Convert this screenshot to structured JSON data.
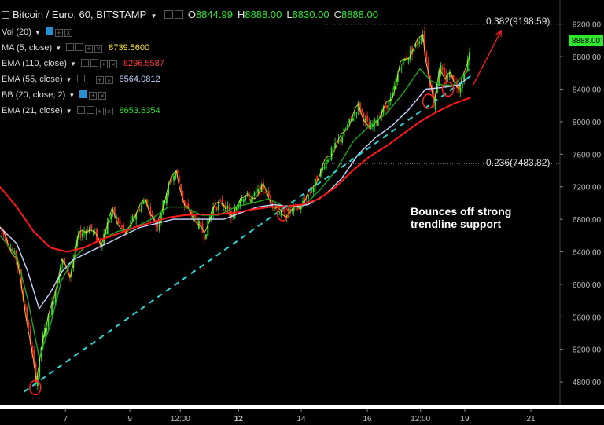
{
  "header": {
    "title": "Bitcoin / Euro, 60, BITSTAMP",
    "open_label": "O",
    "open": "8844.99",
    "high_label": "H",
    "high": "8888.00",
    "low_label": "L",
    "low": "8830.00",
    "close_label": "C",
    "close": "8888.00"
  },
  "indicators": [
    {
      "name": "Vol (20)",
      "value": "",
      "color": "#cccccc"
    },
    {
      "name": "MA (5, close)",
      "value": "8739.5600",
      "color": "#ffeb3b"
    },
    {
      "name": "EMA (110, close)",
      "value": "8296.5587",
      "color": "#ff3b3b"
    },
    {
      "name": "EMA (55, close)",
      "value": "8564.0812",
      "color": "#c8d6ff"
    },
    {
      "name": "BB (20, close, 2)",
      "value": "",
      "color": "#cccccc"
    },
    {
      "name": "EMA (21, close)",
      "value": "8653.6354",
      "color": "#2ee82e"
    }
  ],
  "annotation": {
    "line1": "Bounces off strong",
    "line2": "trendline support"
  },
  "fib_labels": {
    "upper": "0.382(9198.59)",
    "lower": "0.236(7483.82)"
  },
  "price_tag": "8888.00",
  "colors": {
    "up": "#2ee82e",
    "down": "#ff2a2a",
    "ma5": "#ffeb3b",
    "ema21": "#1fa51f",
    "ema55": "#c8d6ff",
    "ema110": "#ff1a1a",
    "trendline": "#2fd6d6",
    "circle": "#ff2020",
    "arrow": "#ff2020"
  },
  "chart_data": {
    "type": "line",
    "title": "Bitcoin / Euro, 60, BITSTAMP",
    "xlabel": "",
    "ylabel": "",
    "x_ticks": [
      "7",
      "9",
      "12:00",
      "12",
      "14",
      "16",
      "12:00",
      "19",
      "21"
    ],
    "y_ticks": [
      4800,
      5200,
      5600,
      6000,
      6400,
      6800,
      7200,
      7600,
      8000,
      8400,
      8800,
      9200
    ],
    "ylim": [
      4550,
      9400
    ],
    "x_domain": [
      0,
      100
    ],
    "x_tick_positions": [
      11.7,
      23.2,
      32.2,
      42.6,
      53.8,
      65.6,
      75.1,
      83.0,
      94.8
    ],
    "series": [
      {
        "name": "Price",
        "x": [
          0,
          3,
          5.2,
          6.5,
          7.5,
          9.5,
          11,
          12.5,
          14,
          16,
          18,
          20,
          22.5,
          24,
          26,
          28,
          30,
          31.5,
          33,
          35,
          36.5,
          38,
          40,
          41.5,
          43,
          45,
          47,
          49,
          50.5,
          52,
          53.6,
          56,
          58,
          60,
          62.5,
          64,
          66,
          68,
          70,
          71.5,
          74,
          75.5,
          76,
          77.5,
          78.5,
          79.5,
          80.5,
          82,
          83,
          84
        ],
        "y": [
          6700,
          6300,
          5400,
          4780,
          5300,
          5800,
          6300,
          6100,
          6600,
          6700,
          6500,
          6900,
          6600,
          6850,
          7050,
          6700,
          7200,
          7400,
          6950,
          6800,
          6600,
          6950,
          7000,
          6800,
          7100,
          7050,
          7200,
          6950,
          6850,
          6900,
          6950,
          7200,
          7500,
          7700,
          8000,
          8200,
          7900,
          8100,
          8300,
          8700,
          8900,
          9100,
          8800,
          8200,
          8700,
          8500,
          8600,
          8400,
          8600,
          8888
        ]
      },
      {
        "name": "EMA (21, close)",
        "x": [
          0,
          3,
          5,
          7,
          9,
          11,
          13,
          15,
          18,
          21,
          24,
          27,
          30,
          33,
          36,
          39,
          42,
          45,
          48,
          51,
          54,
          57,
          60,
          63,
          66,
          69,
          72,
          75,
          77,
          79,
          81,
          84
        ],
        "y": [
          6600,
          6350,
          5800,
          5100,
          5500,
          6050,
          6300,
          6450,
          6550,
          6650,
          6700,
          6800,
          6950,
          6950,
          6850,
          6850,
          6950,
          7000,
          7050,
          6950,
          6950,
          7150,
          7400,
          7750,
          7950,
          8100,
          8350,
          8650,
          8500,
          8450,
          8450,
          8653
        ]
      },
      {
        "name": "EMA (55, close)",
        "x": [
          0,
          3,
          5,
          7,
          9,
          11,
          13,
          16,
          19,
          22,
          25,
          28,
          31,
          34,
          37,
          40,
          43,
          46,
          49,
          52,
          55,
          58,
          61,
          64,
          67,
          70,
          73,
          76,
          79,
          82,
          84
        ],
        "y": [
          6700,
          6500,
          6150,
          5700,
          5900,
          6150,
          6300,
          6400,
          6500,
          6600,
          6700,
          6750,
          6800,
          6800,
          6800,
          6800,
          6880,
          6950,
          6980,
          6950,
          6980,
          7100,
          7300,
          7600,
          7800,
          7950,
          8150,
          8400,
          8420,
          8450,
          8564
        ]
      },
      {
        "name": "EMA (110, close)",
        "x": [
          0,
          3,
          6,
          9,
          12,
          15,
          18,
          21,
          24,
          27,
          30,
          33,
          36,
          39,
          42,
          45,
          48,
          51,
          54,
          57,
          60,
          63,
          66,
          69,
          72,
          75,
          78,
          81,
          84
        ],
        "y": [
          7200,
          6950,
          6650,
          6450,
          6400,
          6450,
          6550,
          6620,
          6700,
          6760,
          6820,
          6850,
          6860,
          6860,
          6880,
          6920,
          6950,
          6960,
          6980,
          7050,
          7200,
          7400,
          7570,
          7700,
          7850,
          8000,
          8120,
          8220,
          8296
        ]
      },
      {
        "name": "Trendline",
        "x": [
          4.3,
          84
        ],
        "y": [
          4680,
          8560
        ]
      }
    ],
    "fib_levels": [
      {
        "label": "0.382",
        "value": 9198.59
      },
      {
        "label": "0.236",
        "value": 7483.82
      }
    ],
    "highlighted_points": [
      {
        "x": 6.3,
        "y": 4730
      },
      {
        "x": 50.5,
        "y": 6870
      },
      {
        "x": 76.5,
        "y": 8250
      },
      {
        "x": 80.0,
        "y": 8400
      }
    ],
    "last_price": 8888.0
  }
}
